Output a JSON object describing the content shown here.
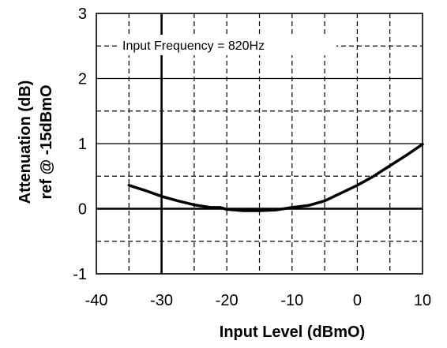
{
  "chart_data": {
    "type": "line",
    "title": "",
    "xlabel": "Input Level (dBmO)",
    "ylabel_line1": "Attenuation (dB)",
    "ylabel_line2": "ref @ -15dBmO",
    "annotation": "Input Frequency = 820Hz",
    "xlim": [
      -40,
      10
    ],
    "ylim": [
      -1,
      3
    ],
    "x_ticks": [
      -40,
      -30,
      -20,
      -10,
      0,
      10
    ],
    "y_ticks": [
      -1,
      0,
      1,
      2,
      3
    ],
    "x_tick_labels": [
      "-40",
      "-30",
      "-20",
      "-10",
      "0",
      "10"
    ],
    "y_tick_labels": [
      "-1",
      "0",
      "1",
      "2",
      "3"
    ],
    "grid": true,
    "series": [
      {
        "x": [
          -35,
          -32.5,
          -30,
          -27.5,
          -25,
          -22.5,
          -21,
          -20,
          -17.5,
          -15,
          -12.5,
          -10,
          -7.5,
          -5,
          -2.5,
          0,
          2.5,
          5,
          7.5,
          10
        ],
        "y": [
          0.36,
          0.28,
          0.19,
          0.12,
          0.06,
          0.02,
          0.02,
          -0.01,
          -0.03,
          -0.03,
          -0.02,
          0.02,
          0.05,
          0.12,
          0.24,
          0.36,
          0.5,
          0.66,
          0.82,
          0.99
        ]
      }
    ]
  }
}
